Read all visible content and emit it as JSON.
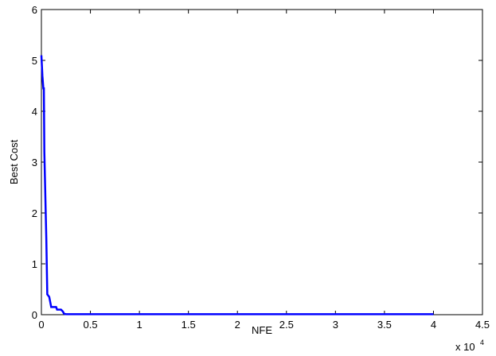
{
  "chart_data": {
    "type": "line",
    "title": "",
    "xlabel": "NFE",
    "ylabel": "Best Cost",
    "x_exponent_label": "x 10",
    "x_exponent_power": "4",
    "xlim": [
      0,
      4.5
    ],
    "ylim": [
      0,
      6
    ],
    "xticks": [
      0,
      0.5,
      1,
      1.5,
      2,
      2.5,
      3,
      3.5,
      4,
      4.5
    ],
    "xtick_labels": [
      "0",
      "0.5",
      "1",
      "1.5",
      "2",
      "2.5",
      "3",
      "3.5",
      "4",
      "4.5"
    ],
    "yticks": [
      0,
      1,
      2,
      3,
      4,
      5,
      6
    ],
    "ytick_labels": [
      "0",
      "1",
      "2",
      "3",
      "4",
      "5",
      "6"
    ],
    "grid": false,
    "line_color": "#0000ff",
    "series": [
      {
        "x": [
          0.0,
          0.01,
          0.02,
          0.025,
          0.03,
          0.05,
          0.06,
          0.08,
          0.1,
          0.15,
          0.16,
          0.18,
          0.2,
          0.22,
          0.23,
          0.25,
          0.3,
          0.5,
          1.0,
          2.0,
          3.0,
          4.0
        ],
        "y": [
          5.1,
          4.7,
          4.45,
          4.45,
          3.2,
          1.5,
          0.4,
          0.35,
          0.15,
          0.15,
          0.1,
          0.1,
          0.1,
          0.06,
          0.02,
          0.01,
          0.01,
          0.01,
          0.01,
          0.01,
          0.01,
          0.01
        ]
      }
    ]
  }
}
